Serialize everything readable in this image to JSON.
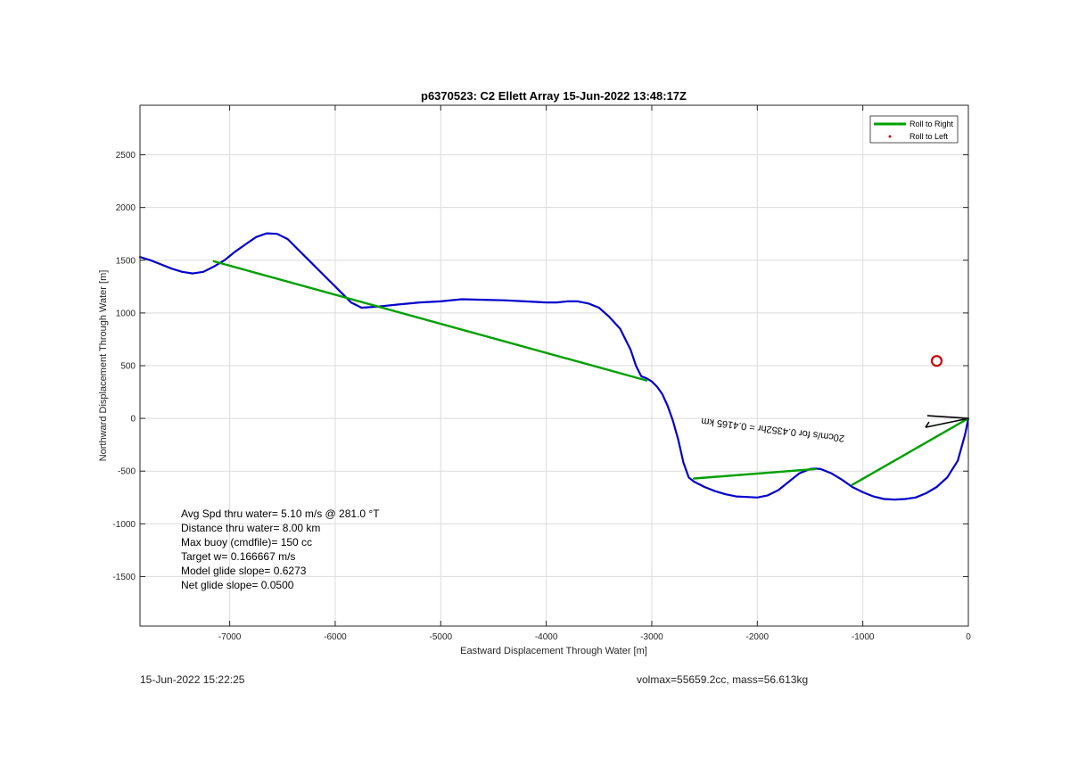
{
  "chart_data": {
    "type": "line",
    "title": "p6370523: C2 Ellett Array 15-Jun-2022 13:48:17Z",
    "xlabel": "Eastward Displacement Through Water [m]",
    "ylabel": "Northward Displacement Through Water [m]",
    "xlim": [
      -7850,
      0
    ],
    "ylim": [
      -1970,
      2970
    ],
    "xticks": [
      -7000,
      -6000,
      -5000,
      -4000,
      -3000,
      -2000,
      -1000,
      0
    ],
    "yticks": [
      -1500,
      -1000,
      -500,
      0,
      500,
      1000,
      1500,
      2000,
      2500
    ],
    "grid": true,
    "legend_position": "top-right",
    "legend": [
      "Roll to Right",
      "Roll to Left"
    ],
    "series": [
      {
        "name": "track",
        "color": "#0000cc",
        "x": [
          0,
          -30,
          -100,
          -200,
          -300,
          -400,
          -500,
          -600,
          -700,
          -800,
          -900,
          -1000,
          -1100,
          -1200,
          -1300,
          -1400,
          -1450,
          -1500,
          -1600,
          -1700,
          -1800,
          -1900,
          -2000,
          -2100,
          -2200,
          -2300,
          -2400,
          -2500,
          -2600,
          -2650,
          -2700,
          -2750,
          -2800,
          -2850,
          -2900,
          -2950,
          -3000,
          -3050,
          -3100,
          -3150,
          -3200,
          -3300,
          -3400,
          -3500,
          -3600,
          -3700,
          -3800,
          -3900,
          -4000,
          -4200,
          -4400,
          -4600,
          -4800,
          -5000,
          -5200,
          -5400,
          -5600,
          -5750,
          -5850,
          -5950,
          -6050,
          -6150,
          -6250,
          -6350,
          -6450,
          -6550,
          -6650,
          -6750,
          -6850,
          -6950,
          -7050,
          -7150,
          -7250,
          -7350,
          -7450,
          -7550,
          -7650,
          -7750,
          -7850
        ],
        "y": [
          0,
          -150,
          -400,
          -560,
          -650,
          -710,
          -750,
          -765,
          -770,
          -765,
          -740,
          -700,
          -650,
          -580,
          -520,
          -480,
          -475,
          -480,
          -520,
          -600,
          -680,
          -730,
          -750,
          -745,
          -740,
          -720,
          -690,
          -650,
          -600,
          -560,
          -420,
          -200,
          -20,
          120,
          230,
          300,
          350,
          380,
          400,
          500,
          650,
          850,
          960,
          1050,
          1090,
          1110,
          1110,
          1100,
          1100,
          1110,
          1120,
          1125,
          1130,
          1110,
          1100,
          1080,
          1060,
          1050,
          1100,
          1200,
          1300,
          1400,
          1500,
          1600,
          1700,
          1750,
          1755,
          1720,
          1650,
          1580,
          1500,
          1440,
          1390,
          1375,
          1390,
          1420,
          1460,
          1500,
          1530
        ]
      },
      {
        "name": "Roll to Right",
        "color": "#00a000",
        "x": [
          0,
          -1100,
          null,
          -1450,
          -2600,
          null,
          -3050,
          -7150
        ],
        "y": [
          0,
          -630,
          null,
          -480,
          -570,
          null,
          360,
          1490
        ]
      }
    ],
    "markers": [
      {
        "x": -300,
        "y": 545,
        "color": "#cc0000",
        "shape": "circle"
      }
    ],
    "annotations": [
      {
        "text": "20cm/s for 0.4352hr = 0.4165 km",
        "x": -1850,
        "y": -80,
        "rotation_deg": 187,
        "color": "#000000"
      }
    ]
  },
  "stats": [
    "Avg Spd thru water=  5.10 m/s @ 281.0 °T",
    "Distance thru water=  8.00 km",
    "Max buoy (cmdfile)= 150 cc",
    "Target w= 0.166667 m/s",
    "Model glide slope= 0.6273",
    "Net glide slope= 0.0500"
  ],
  "footer": {
    "timestamp": "15-Jun-2022 15:22:25",
    "volmax_mass": "volmax=55659.2cc, mass=56.613kg"
  }
}
